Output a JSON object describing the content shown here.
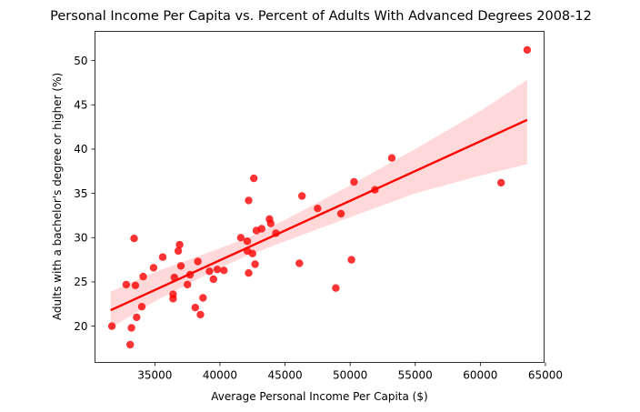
{
  "chart_data": {
    "type": "scatter",
    "title": "Personal Income Per Capita vs. Percent of Adults With Advanced Degrees 2008-12",
    "xlabel": "Average Personal Income Per Capita ($)",
    "ylabel": "Adults with a bachelor's degree or higher (%)",
    "xlim": [
      30400,
      64900
    ],
    "ylim": [
      15.9,
      53.3
    ],
    "xticks": [
      35000,
      40000,
      45000,
      50000,
      55000,
      60000,
      65000
    ],
    "yticks": [
      20,
      25,
      30,
      35,
      40,
      45,
      50
    ],
    "grid": false,
    "colors": {
      "points": "#ff0000",
      "line": "#ff0000",
      "band": "#ffcccc"
    },
    "series": [
      {
        "values_xy": [
          [
            31700,
            20.0
          ],
          [
            32800,
            24.7
          ],
          [
            33100,
            17.9
          ],
          [
            33200,
            19.8
          ],
          [
            33400,
            29.9
          ],
          [
            33500,
            24.6
          ],
          [
            33600,
            21.0
          ],
          [
            34000,
            22.2
          ],
          [
            34100,
            25.6
          ],
          [
            34900,
            26.6
          ],
          [
            35600,
            27.8
          ],
          [
            36400,
            23.1
          ],
          [
            36400,
            23.6
          ],
          [
            36500,
            25.5
          ],
          [
            36800,
            28.5
          ],
          [
            36900,
            29.2
          ],
          [
            37000,
            26.8
          ],
          [
            37500,
            24.7
          ],
          [
            37700,
            25.8
          ],
          [
            38100,
            22.1
          ],
          [
            38300,
            27.3
          ],
          [
            38500,
            21.3
          ],
          [
            38700,
            23.2
          ],
          [
            39200,
            26.2
          ],
          [
            39500,
            25.3
          ],
          [
            39800,
            26.4
          ],
          [
            40300,
            26.3
          ],
          [
            41600,
            30.0
          ],
          [
            42100,
            29.6
          ],
          [
            42100,
            28.5
          ],
          [
            42200,
            34.2
          ],
          [
            42200,
            26.0
          ],
          [
            42500,
            28.2
          ],
          [
            42600,
            36.7
          ],
          [
            42700,
            27.0
          ],
          [
            42800,
            30.8
          ],
          [
            43200,
            31.0
          ],
          [
            43800,
            32.1
          ],
          [
            43900,
            31.6
          ],
          [
            44300,
            30.5
          ],
          [
            46100,
            27.1
          ],
          [
            46300,
            34.7
          ],
          [
            47500,
            33.3
          ],
          [
            48900,
            24.3
          ],
          [
            49300,
            32.7
          ],
          [
            50100,
            27.5
          ],
          [
            50300,
            36.3
          ],
          [
            51900,
            35.4
          ],
          [
            53200,
            39.0
          ],
          [
            61600,
            36.2
          ],
          [
            63600,
            51.2
          ]
        ]
      }
    ],
    "regression": {
      "x": [
        31600,
        63600
      ],
      "y": [
        21.8,
        43.3
      ]
    },
    "confidence_band": {
      "x": [
        31600,
        35000,
        40000,
        42000,
        45000,
        50000,
        55000,
        60000,
        63600
      ],
      "upper": [
        23.9,
        26.1,
        28.8,
        29.9,
        32.0,
        35.9,
        40.0,
        44.3,
        47.8
      ],
      "lower": [
        19.8,
        22.8,
        26.6,
        27.9,
        29.6,
        32.3,
        35.0,
        37.0,
        38.3
      ]
    }
  }
}
